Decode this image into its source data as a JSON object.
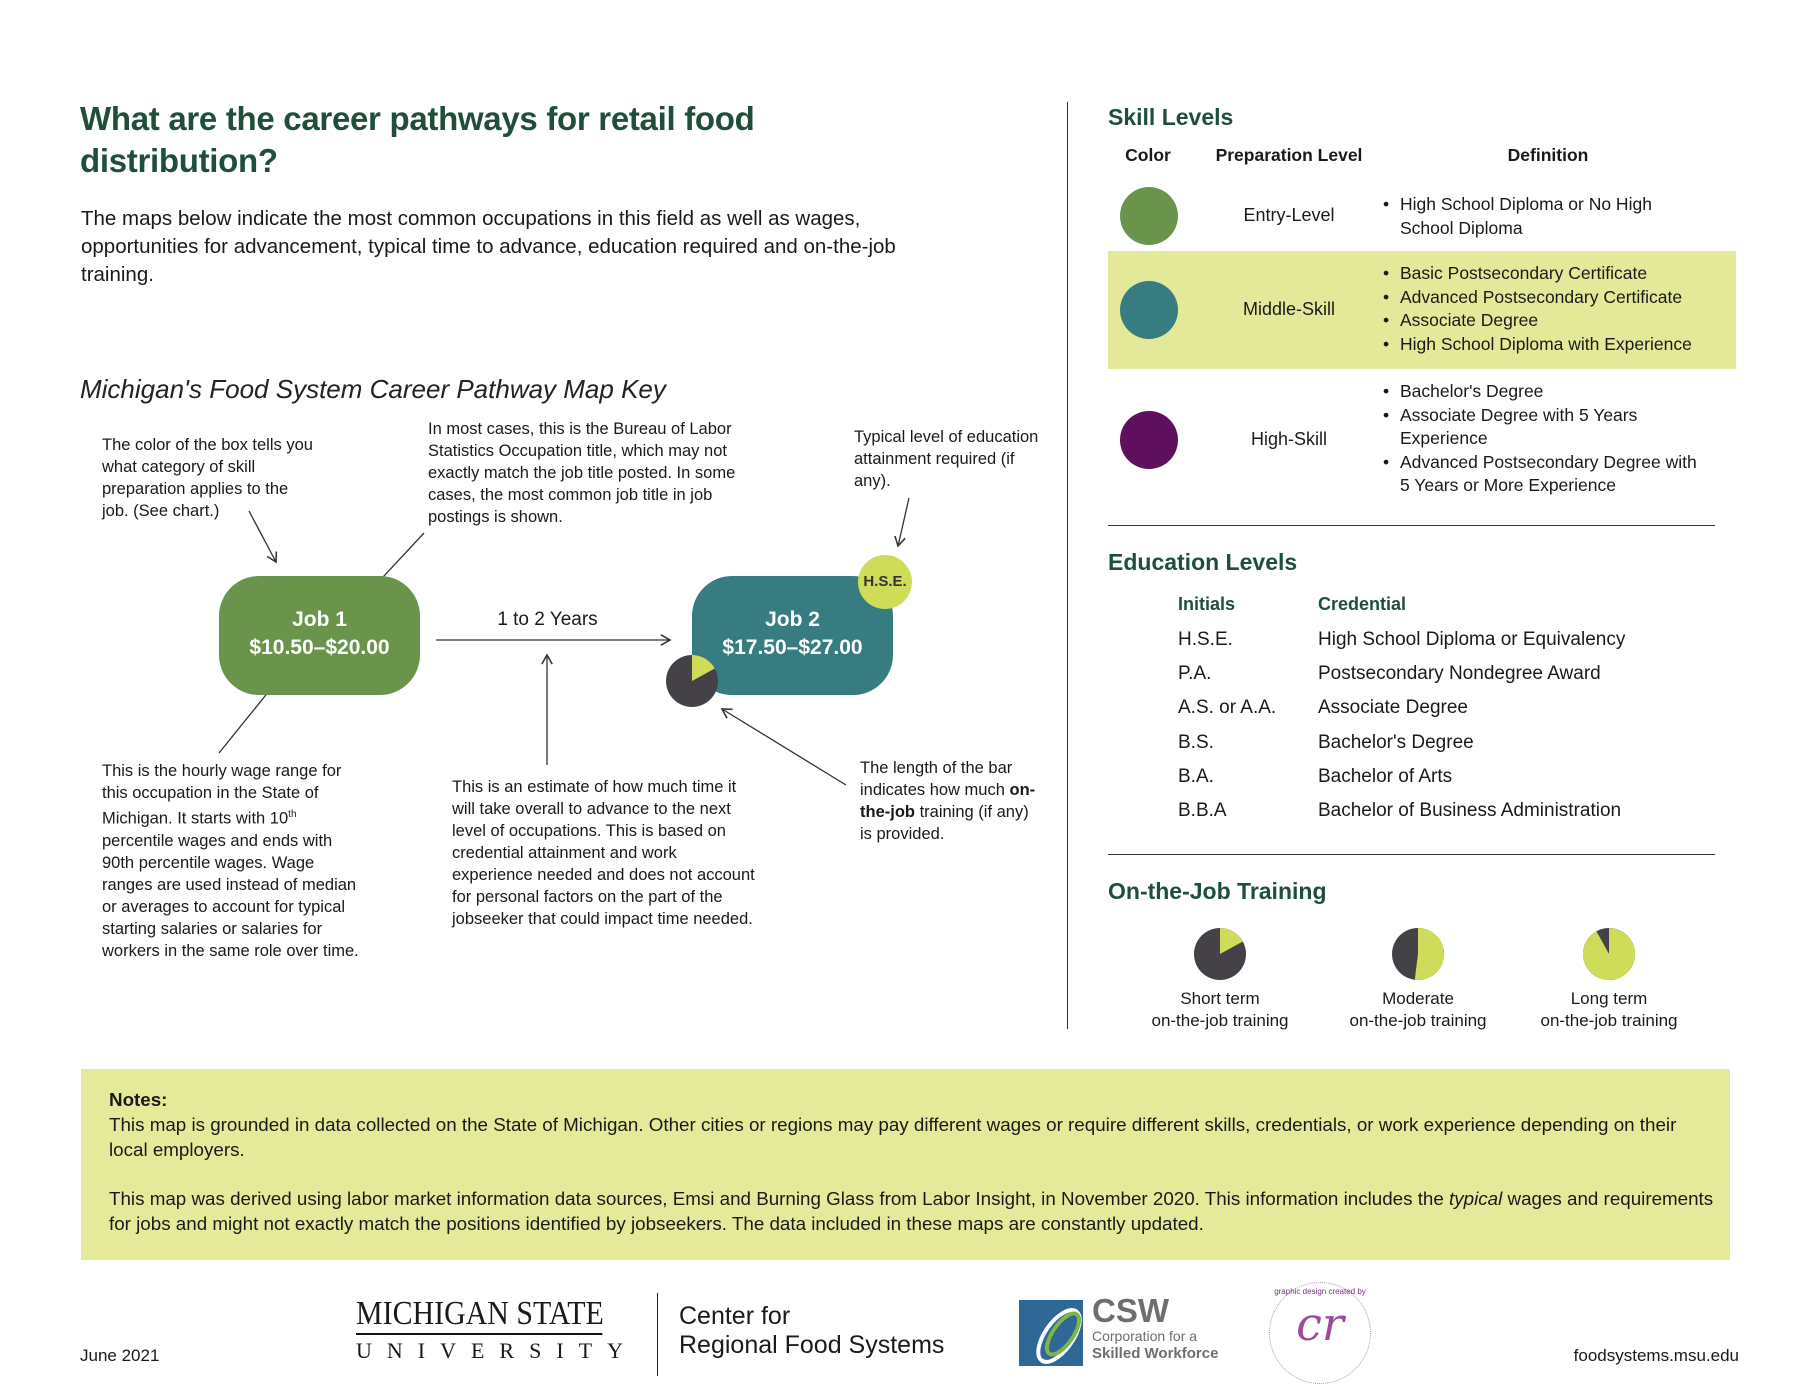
{
  "title": "What are the career pathways for retail food distribution?",
  "intro": "The maps below indicate the most common occupations in this field as well as wages, opportunities for advancement, typical time to advance, education required and on-the-job training.",
  "map_key": {
    "title": "Michigan's Food System Career Pathway Map Key",
    "ann_color": "The color of the box tells you what category of skill preparation applies to the job. (See chart.)",
    "ann_title": "In most cases, this is the Bureau of Labor Statistics Occupation title, which may not exactly match the job title posted. In some cases, the most common job title in job postings is shown.",
    "ann_education": "Typical level of education attainment required (if any).",
    "ann_wage_a": "This is the hourly wage range for this occupation in the State of Michigan. It starts with 10",
    "ann_wage_sup": "th",
    "ann_wage_b": " percentile wages and ends with 90th percentile wages. Wage ranges are used instead of median or averages to account for typical starting salaries or salaries for workers in the same role over time.",
    "ann_time": "This is an estimate of how much time it will take overall to advance to the next level of occupations. This is based on credential attainment and work experience needed and does not account for personal factors on the part of the jobseeker that could impact time needed.",
    "ann_bar_a": "The length of the bar indicates how much ",
    "ann_bar_bold": "on-the-job",
    "ann_bar_b": " training (if any) is provided.",
    "job1": {
      "title": "Job 1",
      "wage": "$10.50–$20.00",
      "color": "#6a944b"
    },
    "job2": {
      "title": "Job 2",
      "wage": "$17.50–$27.00",
      "color": "#377c80",
      "badge": "H.S.E.",
      "training_fraction": 0.17
    },
    "transition": "1 to 2 Years"
  },
  "skill_levels": {
    "title": "Skill Levels",
    "headers": [
      "Color",
      "Preparation Level",
      "Definition"
    ],
    "rows": [
      {
        "level": "Entry-Level",
        "color": "#6a944b",
        "defs": [
          "High School Diploma or No High School Diploma"
        ]
      },
      {
        "level": "Middle-Skill",
        "color": "#377c80",
        "highlight": "#e4e999",
        "defs": [
          "Basic Postsecondary Certificate",
          "Advanced Postsecondary Certificate",
          "Associate Degree",
          "High School Diploma with Experience"
        ]
      },
      {
        "level": "High-Skill",
        "color": "#5e0f5d",
        "defs": [
          "Bachelor's Degree",
          "Associate Degree with 5 Years Experience",
          "Advanced Postsecondary Degree with 5 Years or More Experience"
        ]
      }
    ]
  },
  "education": {
    "title": "Education Levels",
    "headers": [
      "Initials",
      "Credential"
    ],
    "rows": [
      [
        "H.S.E.",
        "High School Diploma or Equivalency"
      ],
      [
        "P.A.",
        "Postsecondary Nondegree Award"
      ],
      [
        "A.S. or A.A.",
        "Associate Degree"
      ],
      [
        "B.S.",
        "Bachelor's Degree"
      ],
      [
        "B.A.",
        "Bachelor of Arts"
      ],
      [
        "B.B.A",
        "Bachelor of Business Administration"
      ]
    ]
  },
  "ojt": {
    "title": "On-the-Job Training",
    "items": [
      {
        "line1": "Short term",
        "line2": "on-the-job training",
        "fraction": 0.17
      },
      {
        "line1": "Moderate",
        "line2": "on-the-job training",
        "fraction": 0.52
      },
      {
        "line1": "Long term",
        "line2": "on-the-job training",
        "fraction": 0.92
      }
    ]
  },
  "notes": {
    "label": "Notes:",
    "p1": "This map is grounded in data collected on the State of Michigan. Other cities or regions may pay different wages or require different skills, credentials, or work experience depending on their local employers.",
    "p2a": "This map was derived using labor market information data sources, Emsi and Burning Glass from Labor Insight, in November 2020. This information includes the ",
    "p2i": "typical",
    "p2b": " wages and requirements for jobs and might not exactly match the positions identified by jobseekers. The data included in these maps are constantly updated."
  },
  "footer": {
    "date": "June 2021",
    "msu_line1": "MICHIGAN STATE",
    "msu_line2": "UNIVERSITY",
    "center_line1": "Center for",
    "center_line2": "Regional Food Systems",
    "csw": "CSW",
    "csw_line1": "Corporation for a",
    "csw_line2": "Skilled Workforce",
    "designer_logo": "cr",
    "designer_text": "graphic design created by",
    "url": "foodsystems.msu.edu"
  },
  "colors": {
    "heading": "#1f4f3b",
    "pie_dark": "#444246",
    "pie_lime": "#cfdc5a"
  }
}
